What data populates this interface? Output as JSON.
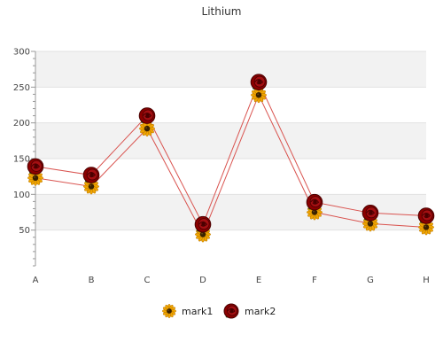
{
  "chart_data": {
    "type": "line",
    "title": "Lithium",
    "categories": [
      "A",
      "B",
      "C",
      "D",
      "E",
      "F",
      "G",
      "H"
    ],
    "series": [
      {
        "name": "mark1",
        "values": [
          123,
          111,
          192,
          44,
          239,
          75,
          59,
          54
        ],
        "marker": "sunflower"
      },
      {
        "name": "mark2",
        "values": [
          139,
          127,
          210,
          58,
          257,
          89,
          74,
          70
        ],
        "marker": "rose"
      }
    ],
    "ylim": [
      0,
      300
    ],
    "yticks": [
      50,
      100,
      150,
      200,
      250,
      300
    ],
    "grid": true,
    "legend_position": "bottom",
    "colors": {
      "line": "#d9534f",
      "band": "#f2f2f2",
      "axis": "#999999",
      "sunflower_petal": "#f0a500",
      "sunflower_center": "#3a2200",
      "rose": "#8b0000",
      "rose_dark": "#4a0000"
    }
  }
}
